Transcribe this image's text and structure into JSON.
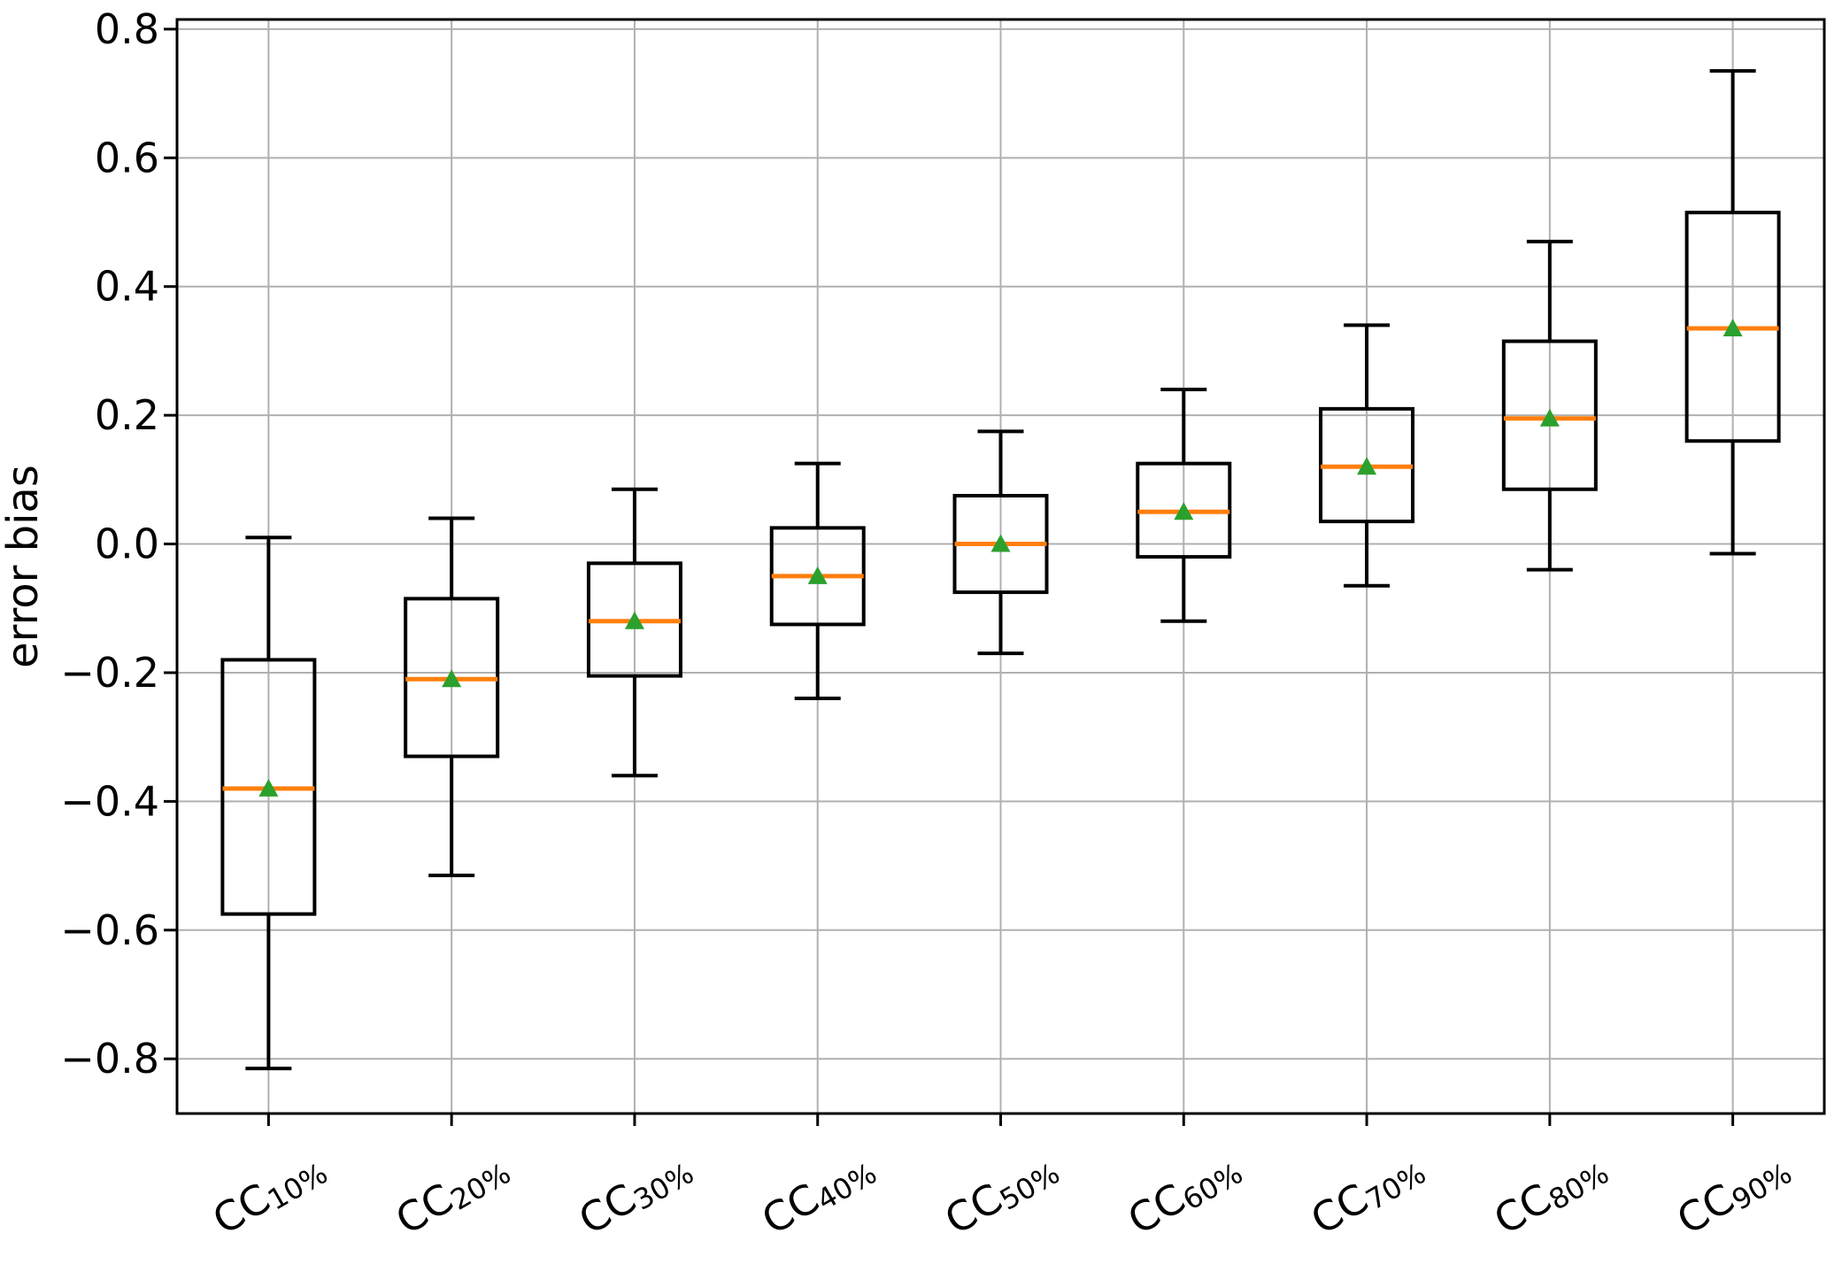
{
  "figure": {
    "background": "#ffffff"
  },
  "chart_data": {
    "type": "boxplot",
    "title": "",
    "xlabel": "",
    "ylabel": "error bias",
    "grid": true,
    "legend": "none",
    "ylim": [
      -0.885,
      0.815
    ],
    "yticks": [
      0.8,
      0.6,
      0.4,
      0.2,
      0.0,
      -0.2,
      -0.4,
      -0.6,
      -0.8
    ],
    "ytick_labels": [
      "0.8",
      "0.6",
      "0.4",
      "0.2",
      "0.0",
      "−0.2",
      "−0.4",
      "−0.6",
      "−0.8"
    ],
    "categories": [
      {
        "base": "CC",
        "sub": "10%",
        "label": "CC10%"
      },
      {
        "base": "CC",
        "sub": "20%",
        "label": "CC20%"
      },
      {
        "base": "CC",
        "sub": "30%",
        "label": "CC30%"
      },
      {
        "base": "CC",
        "sub": "40%",
        "label": "CC40%"
      },
      {
        "base": "CC",
        "sub": "50%",
        "label": "CC50%"
      },
      {
        "base": "CC",
        "sub": "60%",
        "label": "CC60%"
      },
      {
        "base": "CC",
        "sub": "70%",
        "label": "CC70%"
      },
      {
        "base": "CC",
        "sub": "80%",
        "label": "CC80%"
      },
      {
        "base": "CC",
        "sub": "90%",
        "label": "CC90%"
      }
    ],
    "boxes": [
      {
        "label": "CC10%",
        "whisker_low": -0.815,
        "q1": -0.575,
        "median": -0.38,
        "mean": -0.38,
        "q3": -0.18,
        "whisker_high": 0.01
      },
      {
        "label": "CC20%",
        "whisker_low": -0.515,
        "q1": -0.33,
        "median": -0.21,
        "mean": -0.21,
        "q3": -0.085,
        "whisker_high": 0.04
      },
      {
        "label": "CC30%",
        "whisker_low": -0.36,
        "q1": -0.205,
        "median": -0.12,
        "mean": -0.12,
        "q3": -0.03,
        "whisker_high": 0.085
      },
      {
        "label": "CC40%",
        "whisker_low": -0.24,
        "q1": -0.125,
        "median": -0.05,
        "mean": -0.05,
        "q3": 0.025,
        "whisker_high": 0.125
      },
      {
        "label": "CC50%",
        "whisker_low": -0.17,
        "q1": -0.075,
        "median": 0.0,
        "mean": 0.0,
        "q3": 0.075,
        "whisker_high": 0.175
      },
      {
        "label": "CC60%",
        "whisker_low": -0.12,
        "q1": -0.02,
        "median": 0.05,
        "mean": 0.05,
        "q3": 0.125,
        "whisker_high": 0.24
      },
      {
        "label": "CC70%",
        "whisker_low": -0.065,
        "q1": 0.035,
        "median": 0.12,
        "mean": 0.12,
        "q3": 0.21,
        "whisker_high": 0.34
      },
      {
        "label": "CC80%",
        "whisker_low": -0.04,
        "q1": 0.085,
        "median": 0.195,
        "mean": 0.195,
        "q3": 0.315,
        "whisker_high": 0.47
      },
      {
        "label": "CC90%",
        "whisker_low": -0.015,
        "q1": 0.16,
        "median": 0.335,
        "mean": 0.335,
        "q3": 0.515,
        "whisker_high": 0.735
      }
    ],
    "colors": {
      "box": "#000000",
      "whisker": "#000000",
      "median": "#ff7f0e",
      "mean_marker": "#2ca02c",
      "grid": "#b0b0b0",
      "spine": "#000000",
      "background": "#ffffff"
    },
    "mean_marker_shape": "triangle-up",
    "xtick_rotation_deg": 30
  }
}
